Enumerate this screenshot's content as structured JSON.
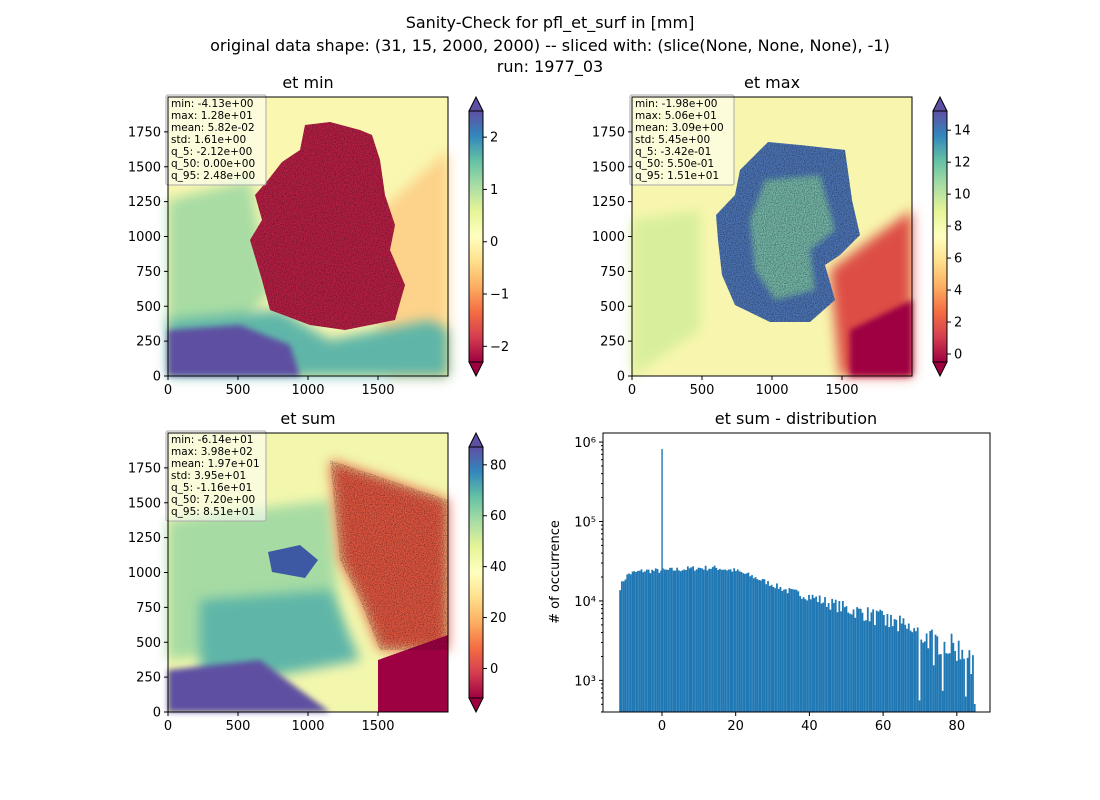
{
  "figure": {
    "suptitle_lines": [
      "Sanity-Check for pfl_et_surf in [mm]",
      "original data shape: (31, 15, 2000, 2000) -- sliced with: (slice(None, None, None), -1)",
      "run: 1977_03"
    ]
  },
  "colors": {
    "hist_bar": "#1f77b4",
    "spectral": [
      "#9e0142",
      "#d53e4f",
      "#f46d43",
      "#fdae61",
      "#fee08b",
      "#ffffbf",
      "#e6f598",
      "#abdda4",
      "#66c2a5",
      "#3288bd",
      "#5e4fa2"
    ]
  },
  "chart_data": [
    {
      "type": "heatmap",
      "title": "et min",
      "colormap": "Spectral",
      "colorbar_extend": "both",
      "xticks": [
        "0",
        "500",
        "1000",
        "1500"
      ],
      "yticks": [
        "0",
        "250",
        "500",
        "750",
        "1000",
        "1250",
        "1500",
        "1750"
      ],
      "xlim": [
        0,
        2000
      ],
      "ylim": [
        0,
        2000
      ],
      "colorbar_range": [
        -2.3,
        2.5
      ],
      "colorbar_ticks": [
        "−2",
        "−1",
        "0",
        "1",
        "2"
      ],
      "colorbar_tick_values": [
        -2,
        -1,
        0,
        1,
        2
      ],
      "stats": [
        "min: -4.13e+00",
        "max: 1.28e+01",
        "mean: 5.82e-02",
        "std: 1.61e+00",
        "q_5: -2.12e+00",
        "q_50: 0.00e+00",
        "q_95: 2.48e+00"
      ]
    },
    {
      "type": "heatmap",
      "title": "et max",
      "colormap": "Spectral",
      "colorbar_extend": "both",
      "xticks": [
        "0",
        "500",
        "1000",
        "1500"
      ],
      "yticks": [
        "0",
        "250",
        "500",
        "750",
        "1000",
        "1250",
        "1500",
        "1750"
      ],
      "xlim": [
        0,
        2000
      ],
      "ylim": [
        0,
        2000
      ],
      "colorbar_range": [
        -0.5,
        15.2
      ],
      "colorbar_ticks": [
        "0",
        "2",
        "4",
        "6",
        "8",
        "10",
        "12",
        "14"
      ],
      "colorbar_tick_values": [
        0,
        2,
        4,
        6,
        8,
        10,
        12,
        14
      ],
      "stats": [
        "min: -1.98e+00",
        "max: 5.06e+01",
        "mean: 3.09e+00",
        "std: 5.45e+00",
        "q_5: -3.42e-01",
        "q_50: 5.50e-01",
        "q_95: 1.51e+01"
      ]
    },
    {
      "type": "heatmap",
      "title": "et sum",
      "colormap": "Spectral",
      "colorbar_extend": "both",
      "xticks": [
        "0",
        "500",
        "1000",
        "1500"
      ],
      "yticks": [
        "0",
        "250",
        "500",
        "750",
        "1000",
        "1250",
        "1500",
        "1750"
      ],
      "xlim": [
        0,
        2000
      ],
      "ylim": [
        0,
        2000
      ],
      "colorbar_range": [
        -11.6,
        87
      ],
      "colorbar_ticks": [
        "0",
        "20",
        "40",
        "60",
        "80"
      ],
      "colorbar_tick_values": [
        0,
        20,
        40,
        60,
        80
      ],
      "stats": [
        "min: -6.14e+01",
        "max: 3.98e+02",
        "mean: 1.97e+01",
        "std: 3.95e+01",
        "q_5: -1.16e+01",
        "q_50: 7.20e+00",
        "q_95: 8.51e+01"
      ]
    },
    {
      "type": "bar",
      "title": "et sum - distribution",
      "xlabel": "",
      "ylabel": "# of occurrence",
      "y_scale": "log",
      "xlim": [
        -16,
        89
      ],
      "ylim": [
        400,
        1300000
      ],
      "xticks": [
        "0",
        "20",
        "40",
        "60",
        "80"
      ],
      "xtick_values": [
        0,
        20,
        40,
        60,
        80
      ],
      "yticks": [
        "10³",
        "10⁴",
        "10⁵",
        "10⁶"
      ],
      "ytick_values": [
        1000,
        10000,
        100000,
        1000000
      ],
      "bin_range": [
        -11.6,
        85.1
      ],
      "bin_count": 200,
      "profile_x": [
        -11.6,
        -10.5,
        -9,
        -5,
        0,
        5,
        10,
        15,
        20,
        25,
        30,
        35,
        40,
        45,
        50,
        55,
        60,
        65,
        70,
        75,
        80,
        85
      ],
      "profile_y": [
        14000,
        18000,
        22000,
        24000,
        24000,
        25000,
        26000,
        26000,
        24000,
        20000,
        16000,
        13000,
        11500,
        9500,
        8000,
        7000,
        5800,
        4800,
        3800,
        3000,
        2500,
        2200
      ],
      "spike": {
        "x": 0,
        "value": 820000
      }
    }
  ]
}
